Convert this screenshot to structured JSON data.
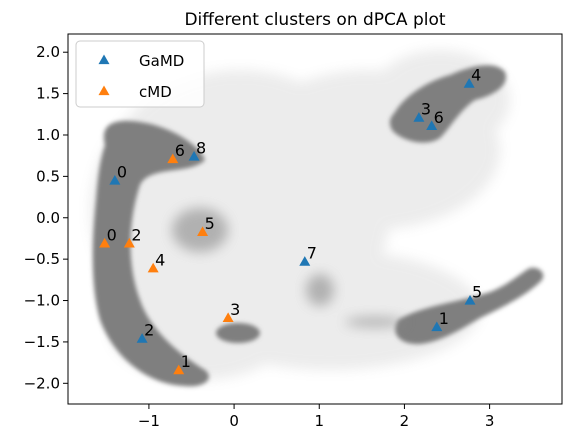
{
  "chart_data": {
    "type": "scatter",
    "title": "Different clusters on dPCA plot",
    "xlabel": "",
    "ylabel": "",
    "xlim": [
      -1.95,
      3.85
    ],
    "ylim": [
      -2.25,
      2.22
    ],
    "xticks": [
      -1,
      0,
      1,
      2,
      3
    ],
    "yticks": [
      -2.0,
      -1.5,
      -1.0,
      -0.5,
      0.0,
      0.5,
      1.0,
      1.5,
      2.0
    ],
    "xtick_labels": [
      "−1",
      "0",
      "1",
      "2",
      "3"
    ],
    "ytick_labels": [
      "−2.0",
      "−1.5",
      "−1.0",
      "−0.5",
      "0.0",
      "0.5",
      "1.0",
      "1.5",
      "2.0"
    ],
    "grid": false,
    "legend_position": "top-left",
    "background_density": "gray point cloud",
    "series": [
      {
        "name": "GaMD",
        "color": "#1f77b4",
        "marker": "triangle",
        "points": [
          {
            "label": "0",
            "x": -1.4,
            "y": 0.45
          },
          {
            "label": "1",
            "x": 2.38,
            "y": -1.32
          },
          {
            "label": "2",
            "x": -1.08,
            "y": -1.46
          },
          {
            "label": "3",
            "x": 2.17,
            "y": 1.21
          },
          {
            "label": "4",
            "x": 2.76,
            "y": 1.62
          },
          {
            "label": "5",
            "x": 2.77,
            "y": -1.0
          },
          {
            "label": "6",
            "x": 2.32,
            "y": 1.11
          },
          {
            "label": "7",
            "x": 0.83,
            "y": -0.53
          },
          {
            "label": "8",
            "x": -0.47,
            "y": 0.74
          }
        ]
      },
      {
        "name": "cMD",
        "color": "#ff7f0e",
        "marker": "triangle",
        "points": [
          {
            "label": "0",
            "x": -1.52,
            "y": -0.31
          },
          {
            "label": "1",
            "x": -0.65,
            "y": -1.84
          },
          {
            "label": "2",
            "x": -1.23,
            "y": -0.31
          },
          {
            "label": "3",
            "x": -0.07,
            "y": -1.21
          },
          {
            "label": "4",
            "x": -0.95,
            "y": -0.61
          },
          {
            "label": "5",
            "x": -0.37,
            "y": -0.17
          },
          {
            "label": "6",
            "x": -0.72,
            "y": 0.71
          }
        ]
      }
    ]
  }
}
